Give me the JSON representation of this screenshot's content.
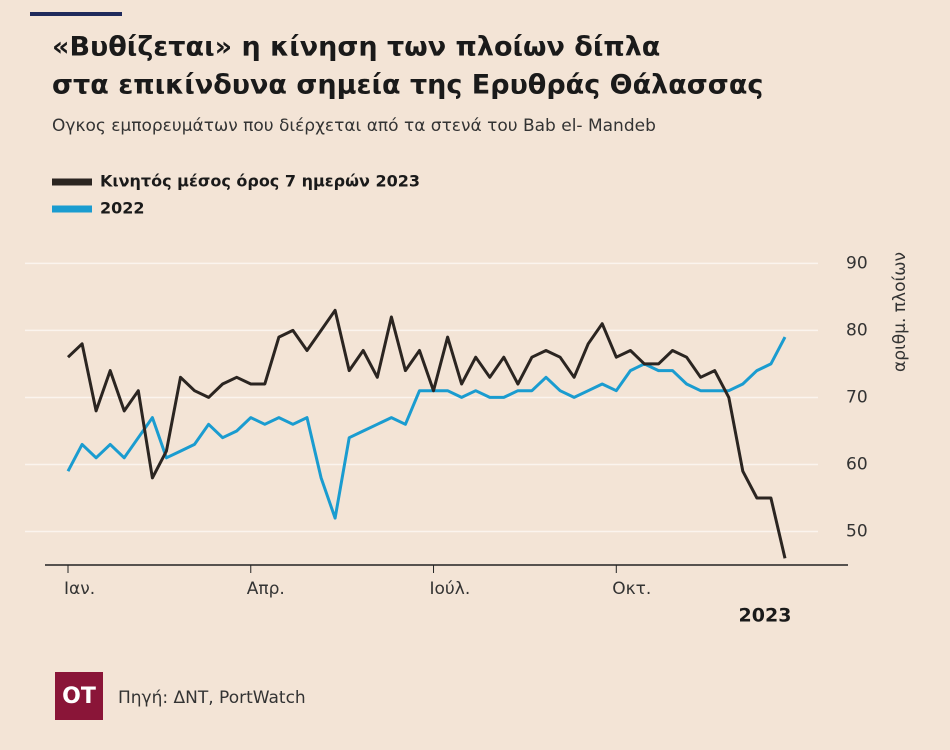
{
  "chart_data": {
    "type": "line",
    "title": [
      "«Βυθίζεται» η κίνηση των πλοίων δίπλα",
      "στα επικίνδυνα σημεία της Ερυθράς Θάλασσας"
    ],
    "subtitle": "Ογκος εμπορευμάτων που διέρχεται από τα στενά του Bab el- Mandeb",
    "y_label": "αριθμ. πλοίων",
    "x_label": "2023",
    "categories": [
      "Ιαν.",
      null,
      null,
      null,
      null,
      null,
      null,
      null,
      null,
      null,
      null,
      null,
      null,
      "Απρ.",
      null,
      null,
      null,
      null,
      null,
      null,
      null,
      null,
      null,
      null,
      null,
      null,
      "Ιούλ.",
      null,
      null,
      null,
      null,
      null,
      null,
      null,
      null,
      null,
      null,
      null,
      null,
      "Οκτ.",
      null,
      null,
      null,
      null,
      null,
      null,
      null,
      null,
      null,
      null,
      null,
      null
    ],
    "series": [
      {
        "name": "Κινητός μέσος όρος 7 ημερών 2023",
        "color": "#2b2521",
        "values": [
          76,
          78,
          68,
          74,
          68,
          71,
          58,
          62,
          73,
          71,
          70,
          72,
          73,
          72,
          72,
          79,
          80,
          77,
          80,
          83,
          74,
          77,
          73,
          82,
          74,
          77,
          71,
          79,
          72,
          76,
          73,
          76,
          72,
          76,
          77,
          76,
          73,
          78,
          81,
          76,
          77,
          75,
          75,
          77,
          76,
          73,
          74,
          70,
          59,
          55,
          55,
          46
        ]
      },
      {
        "name": "2022",
        "color": "#1a9cd0",
        "values": [
          59,
          63,
          61,
          63,
          61,
          64,
          67,
          61,
          62,
          63,
          66,
          64,
          65,
          67,
          66,
          67,
          66,
          67,
          58,
          52,
          64,
          65,
          66,
          67,
          66,
          71,
          71,
          71,
          70,
          71,
          70,
          70,
          71,
          71,
          73,
          71,
          70,
          71,
          72,
          71,
          74,
          75,
          74,
          74,
          72,
          71,
          71,
          71,
          72,
          74,
          75,
          79
        ]
      }
    ],
    "ylim": [
      45,
      92
    ],
    "yticks": [
      50,
      60,
      70,
      80,
      90
    ],
    "grid": true,
    "logo": "OT",
    "source": "Πηγή: ΔΝΤ, PortWatch"
  }
}
